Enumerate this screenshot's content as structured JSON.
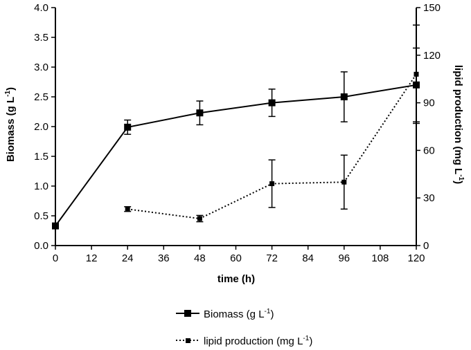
{
  "chart_data": {
    "type": "line",
    "xlabel": "time (h)",
    "ylabel": "Biomass (g L",
    "ylabel_sup": "-1",
    "ylabel_end": ")",
    "y2label": "lipid production (mg L",
    "y2label_sup": "-1",
    "y2label_end": ")",
    "xlim": [
      0,
      120
    ],
    "ylim": [
      0,
      4.0
    ],
    "y2lim": [
      0,
      150
    ],
    "x_ticks": [
      "0",
      "12",
      "24",
      "36",
      "48",
      "60",
      "72",
      "84",
      "96",
      "108",
      "120"
    ],
    "x_tick_values": [
      0,
      12,
      24,
      36,
      48,
      60,
      72,
      84,
      96,
      108,
      120
    ],
    "y_ticks": [
      "0.0",
      "0.5",
      "1.0",
      "1.5",
      "2.0",
      "2.5",
      "3.0",
      "3.5",
      "4.0"
    ],
    "y_tick_values": [
      0,
      0.5,
      1.0,
      1.5,
      2.0,
      2.5,
      3.0,
      3.5,
      4.0
    ],
    "y2_ticks": [
      "0",
      "30",
      "60",
      "90",
      "120",
      "150"
    ],
    "y2_tick_values": [
      0,
      30,
      60,
      90,
      120,
      150
    ],
    "series": [
      {
        "name": "Biomass (g L",
        "name_sup": "-1",
        "name_end": ")",
        "axis": "left",
        "style": "solid",
        "x": [
          0,
          24,
          48,
          72,
          96,
          120
        ],
        "values": [
          0.33,
          1.99,
          2.23,
          2.4,
          2.5,
          2.7
        ],
        "err": [
          0.02,
          0.12,
          0.2,
          0.23,
          0.42,
          0.62
        ]
      },
      {
        "name": "lipid production (mg L",
        "name_sup": "-1",
        "name_end": ")",
        "axis": "right",
        "style": "dotted",
        "x": [
          24,
          48,
          72,
          96,
          120
        ],
        "values": [
          23,
          17,
          39,
          40,
          108
        ],
        "err": [
          1.5,
          2.0,
          15,
          17,
          31
        ]
      }
    ]
  }
}
